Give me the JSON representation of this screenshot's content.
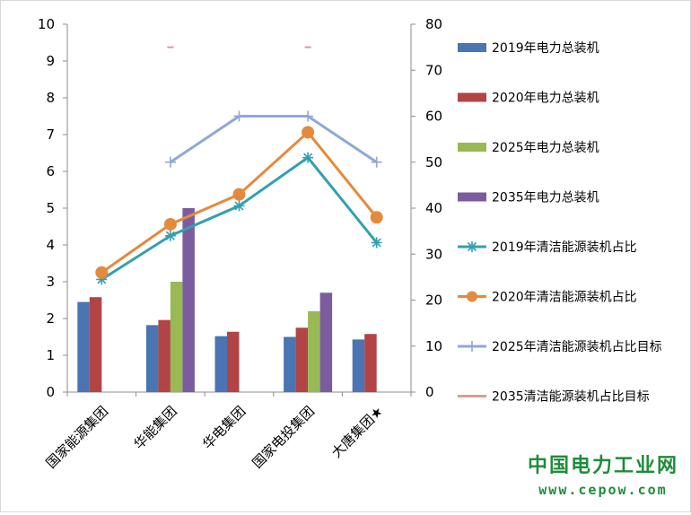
{
  "chart_data": {
    "type": "bar",
    "categories": [
      "国家能源集团",
      "华能集团",
      "华电集团",
      "国家电投集团",
      "大唐集团★"
    ],
    "left_axis": {
      "range": [
        0,
        10
      ],
      "ticks": [
        "0",
        "1",
        "2",
        "3",
        "4",
        "5",
        "6",
        "7",
        "8",
        "9",
        "10"
      ]
    },
    "right_axis": {
      "range": [
        0,
        80
      ],
      "ticks": [
        "0",
        "10",
        "20",
        "30",
        "40",
        "50",
        "60",
        "70",
        "80"
      ]
    },
    "bar_series": [
      {
        "name": "2019年电力总装机",
        "color": "#4a74b2",
        "values": [
          2.45,
          1.82,
          1.52,
          1.5,
          1.43
        ]
      },
      {
        "name": "2020年电力总装机",
        "color": "#b24445",
        "values": [
          2.58,
          1.96,
          1.64,
          1.75,
          1.58
        ]
      },
      {
        "name": "2025年电力总装机",
        "color": "#98b954",
        "values": [
          null,
          3.0,
          null,
          2.2,
          null
        ]
      },
      {
        "name": "2035年电力总装机",
        "color": "#7b5c9e",
        "values": [
          null,
          5.0,
          null,
          2.7,
          null
        ]
      }
    ],
    "line_series": [
      {
        "name": "2019年清洁能源装机占比",
        "color": "#32a0b0",
        "marker": "star",
        "values": [
          24.5,
          34,
          40.5,
          51,
          32.5
        ]
      },
      {
        "name": "2020年清洁能源装机占比",
        "color": "#e48a3c",
        "marker": "circle",
        "values": [
          26,
          36.5,
          43,
          56.5,
          38
        ]
      },
      {
        "name": "2025年清洁能源装机占比目标",
        "color": "#8fa8d8",
        "marker": "plus",
        "values": [
          null,
          50,
          60,
          60,
          50
        ]
      },
      {
        "name": "2035清洁能源装机占比目标",
        "color": "#dc9a9a",
        "marker": "dash",
        "values": [
          null,
          75,
          null,
          75,
          null
        ]
      }
    ],
    "legend": "right"
  },
  "watermark": {
    "name": "中国电力工业网",
    "url": "www.cepow.com"
  }
}
